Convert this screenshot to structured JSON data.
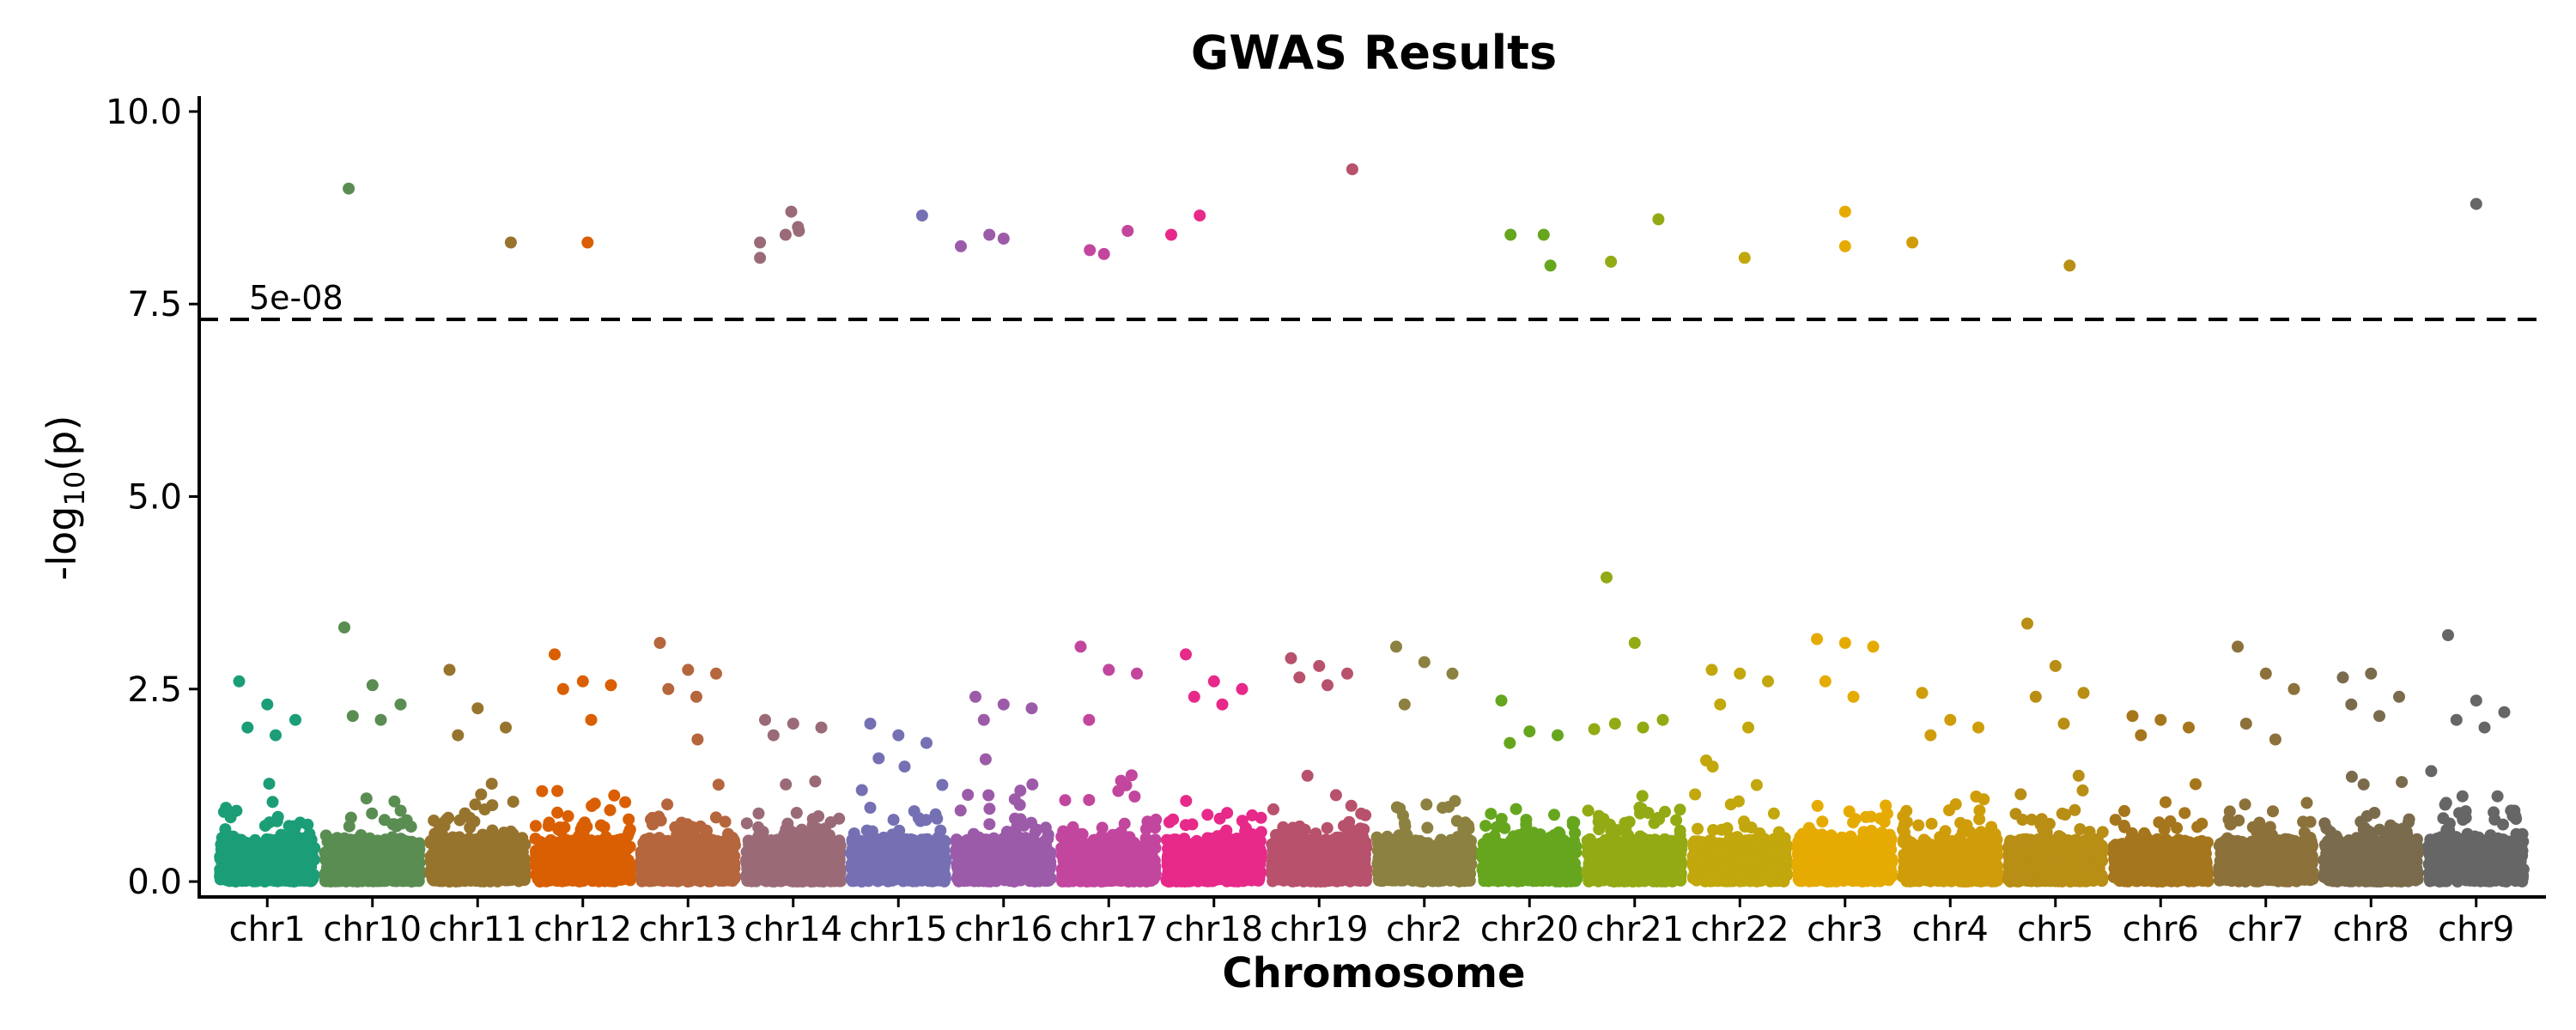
{
  "chart_data": {
    "type": "scatter",
    "subtype": "manhattan",
    "title": "GWAS Results",
    "xlabel": "Chromosome",
    "ylabel": {
      "base": "-log",
      "sub": "10",
      "suffix": "(p)"
    },
    "ylim": [
      -0.2,
      10.2
    ],
    "yticks": [
      0.0,
      2.5,
      5.0,
      7.5,
      10.0
    ],
    "ytick_labels": [
      "0.0",
      "2.5",
      "5.0",
      "7.5",
      "10.0"
    ],
    "grid": false,
    "legend": "none",
    "threshold": {
      "value": 7.3,
      "label": "5e-08",
      "style": "dashed"
    },
    "categories": [
      "chr1",
      "chr10",
      "chr11",
      "chr12",
      "chr13",
      "chr14",
      "chr15",
      "chr16",
      "chr17",
      "chr18",
      "chr19",
      "chr2",
      "chr20",
      "chr21",
      "chr22",
      "chr3",
      "chr4",
      "chr5",
      "chr6",
      "chr7",
      "chr8",
      "chr9"
    ],
    "colors": [
      "#1b9e77",
      "#5a8d52",
      "#97742e",
      "#d95f02",
      "#b5663d",
      "#9a6b77",
      "#7570b3",
      "#9c5ba8",
      "#c2469e",
      "#e7298a",
      "#b8516c",
      "#8c8140",
      "#66a61e",
      "#93aa14",
      "#c2a70d",
      "#e6ab02",
      "#cf9d0a",
      "#b88e14",
      "#a6761d",
      "#8c713a",
      "#7b6b4d",
      "#666666"
    ],
    "background_max": [
      2.6,
      2.0,
      1.9,
      1.9,
      2.0,
      1.9,
      1.7,
      1.9,
      2.0,
      2.0,
      2.0,
      2.2,
      1.8,
      2.0,
      2.0,
      2.1,
      2.0,
      2.1,
      2.1,
      2.0,
      2.0,
      2.2
    ],
    "moderate_hits": [
      {
        "chr": "chr1",
        "y": [
          2.6,
          2.3,
          2.1,
          2.0,
          1.9
        ]
      },
      {
        "chr": "chr10",
        "y": [
          3.3,
          2.55,
          2.3,
          2.15,
          2.1
        ]
      },
      {
        "chr": "chr11",
        "y": [
          2.75,
          2.25,
          2.0,
          1.9
        ]
      },
      {
        "chr": "chr12",
        "y": [
          2.95,
          2.6,
          2.55,
          2.5,
          2.1
        ]
      },
      {
        "chr": "chr13",
        "y": [
          3.1,
          2.75,
          2.7,
          2.5,
          2.4
        ]
      },
      {
        "chr": "chr14",
        "y": [
          2.1,
          2.05,
          2.0,
          1.9
        ]
      },
      {
        "chr": "chr15",
        "y": [
          2.05,
          1.9,
          1.8,
          1.6
        ]
      },
      {
        "chr": "chr16",
        "y": [
          2.4,
          2.3,
          2.25,
          2.1
        ]
      },
      {
        "chr": "chr17",
        "y": [
          3.05,
          2.75,
          2.7,
          2.1
        ]
      },
      {
        "chr": "chr18",
        "y": [
          2.95,
          2.6,
          2.5,
          2.4,
          2.3
        ]
      },
      {
        "chr": "chr19",
        "y": [
          2.9,
          2.8,
          2.7,
          2.65,
          2.55
        ]
      },
      {
        "chr": "chr2",
        "y": [
          3.05,
          2.85,
          2.7,
          2.3
        ]
      },
      {
        "chr": "chr20",
        "y": [
          2.35,
          1.95,
          1.9,
          1.8
        ]
      },
      {
        "chr": "chr21",
        "y": [
          3.95,
          3.1,
          2.1,
          2.05,
          2.0
        ]
      },
      {
        "chr": "chr22",
        "y": [
          2.75,
          2.7,
          2.6,
          2.3,
          2.0
        ]
      },
      {
        "chr": "chr3",
        "y": [
          3.15,
          3.1,
          3.05,
          2.6,
          2.4
        ]
      },
      {
        "chr": "chr4",
        "y": [
          2.45,
          2.1,
          2.0,
          1.9
        ]
      },
      {
        "chr": "chr5",
        "y": [
          3.35,
          2.8,
          2.45,
          2.4,
          2.05
        ]
      },
      {
        "chr": "chr6",
        "y": [
          2.15,
          2.1,
          2.0,
          1.9
        ]
      },
      {
        "chr": "chr7",
        "y": [
          3.05,
          2.7,
          2.5,
          2.05
        ]
      },
      {
        "chr": "chr8",
        "y": [
          2.65,
          2.7,
          2.4,
          2.3,
          2.15
        ]
      },
      {
        "chr": "chr9",
        "y": [
          3.2,
          2.35,
          2.2,
          2.1,
          2.0
        ]
      }
    ],
    "significant_hits": [
      {
        "chr": "chr10",
        "pos": 0.25,
        "y": 9.0
      },
      {
        "chr": "chr11",
        "pos": 0.85,
        "y": 8.3
      },
      {
        "chr": "chr12",
        "pos": 0.55,
        "y": 8.3
      },
      {
        "chr": "chr14",
        "pos": 0.15,
        "y": 8.1
      },
      {
        "chr": "chr14",
        "pos": 0.15,
        "y": 8.3
      },
      {
        "chr": "chr14",
        "pos": 0.42,
        "y": 8.4
      },
      {
        "chr": "chr14",
        "pos": 0.48,
        "y": 8.7
      },
      {
        "chr": "chr14",
        "pos": 0.55,
        "y": 8.5
      },
      {
        "chr": "chr14",
        "pos": 0.56,
        "y": 8.45
      },
      {
        "chr": "chr15",
        "pos": 0.75,
        "y": 8.65
      },
      {
        "chr": "chr16",
        "pos": 0.05,
        "y": 8.25
      },
      {
        "chr": "chr16",
        "pos": 0.35,
        "y": 8.4
      },
      {
        "chr": "chr16",
        "pos": 0.5,
        "y": 8.35
      },
      {
        "chr": "chr17",
        "pos": 0.3,
        "y": 8.2
      },
      {
        "chr": "chr17",
        "pos": 0.45,
        "y": 8.15
      },
      {
        "chr": "chr17",
        "pos": 0.7,
        "y": 8.45
      },
      {
        "chr": "chr18",
        "pos": 0.05,
        "y": 8.4
      },
      {
        "chr": "chr18",
        "pos": 0.35,
        "y": 8.65
      },
      {
        "chr": "chr19",
        "pos": 0.85,
        "y": 9.25
      },
      {
        "chr": "chr20",
        "pos": 0.3,
        "y": 8.4
      },
      {
        "chr": "chr20",
        "pos": 0.65,
        "y": 8.4
      },
      {
        "chr": "chr20",
        "pos": 0.72,
        "y": 8.0
      },
      {
        "chr": "chr21",
        "pos": 0.25,
        "y": 8.05
      },
      {
        "chr": "chr21",
        "pos": 0.75,
        "y": 8.6
      },
      {
        "chr": "chr22",
        "pos": 0.55,
        "y": 8.1
      },
      {
        "chr": "chr3",
        "pos": 0.5,
        "y": 8.7
      },
      {
        "chr": "chr3",
        "pos": 0.5,
        "y": 8.25
      },
      {
        "chr": "chr4",
        "pos": 0.1,
        "y": 8.3
      },
      {
        "chr": "chr5",
        "pos": 0.65,
        "y": 8.0
      },
      {
        "chr": "chr9",
        "pos": 0.5,
        "y": 8.8
      }
    ]
  }
}
